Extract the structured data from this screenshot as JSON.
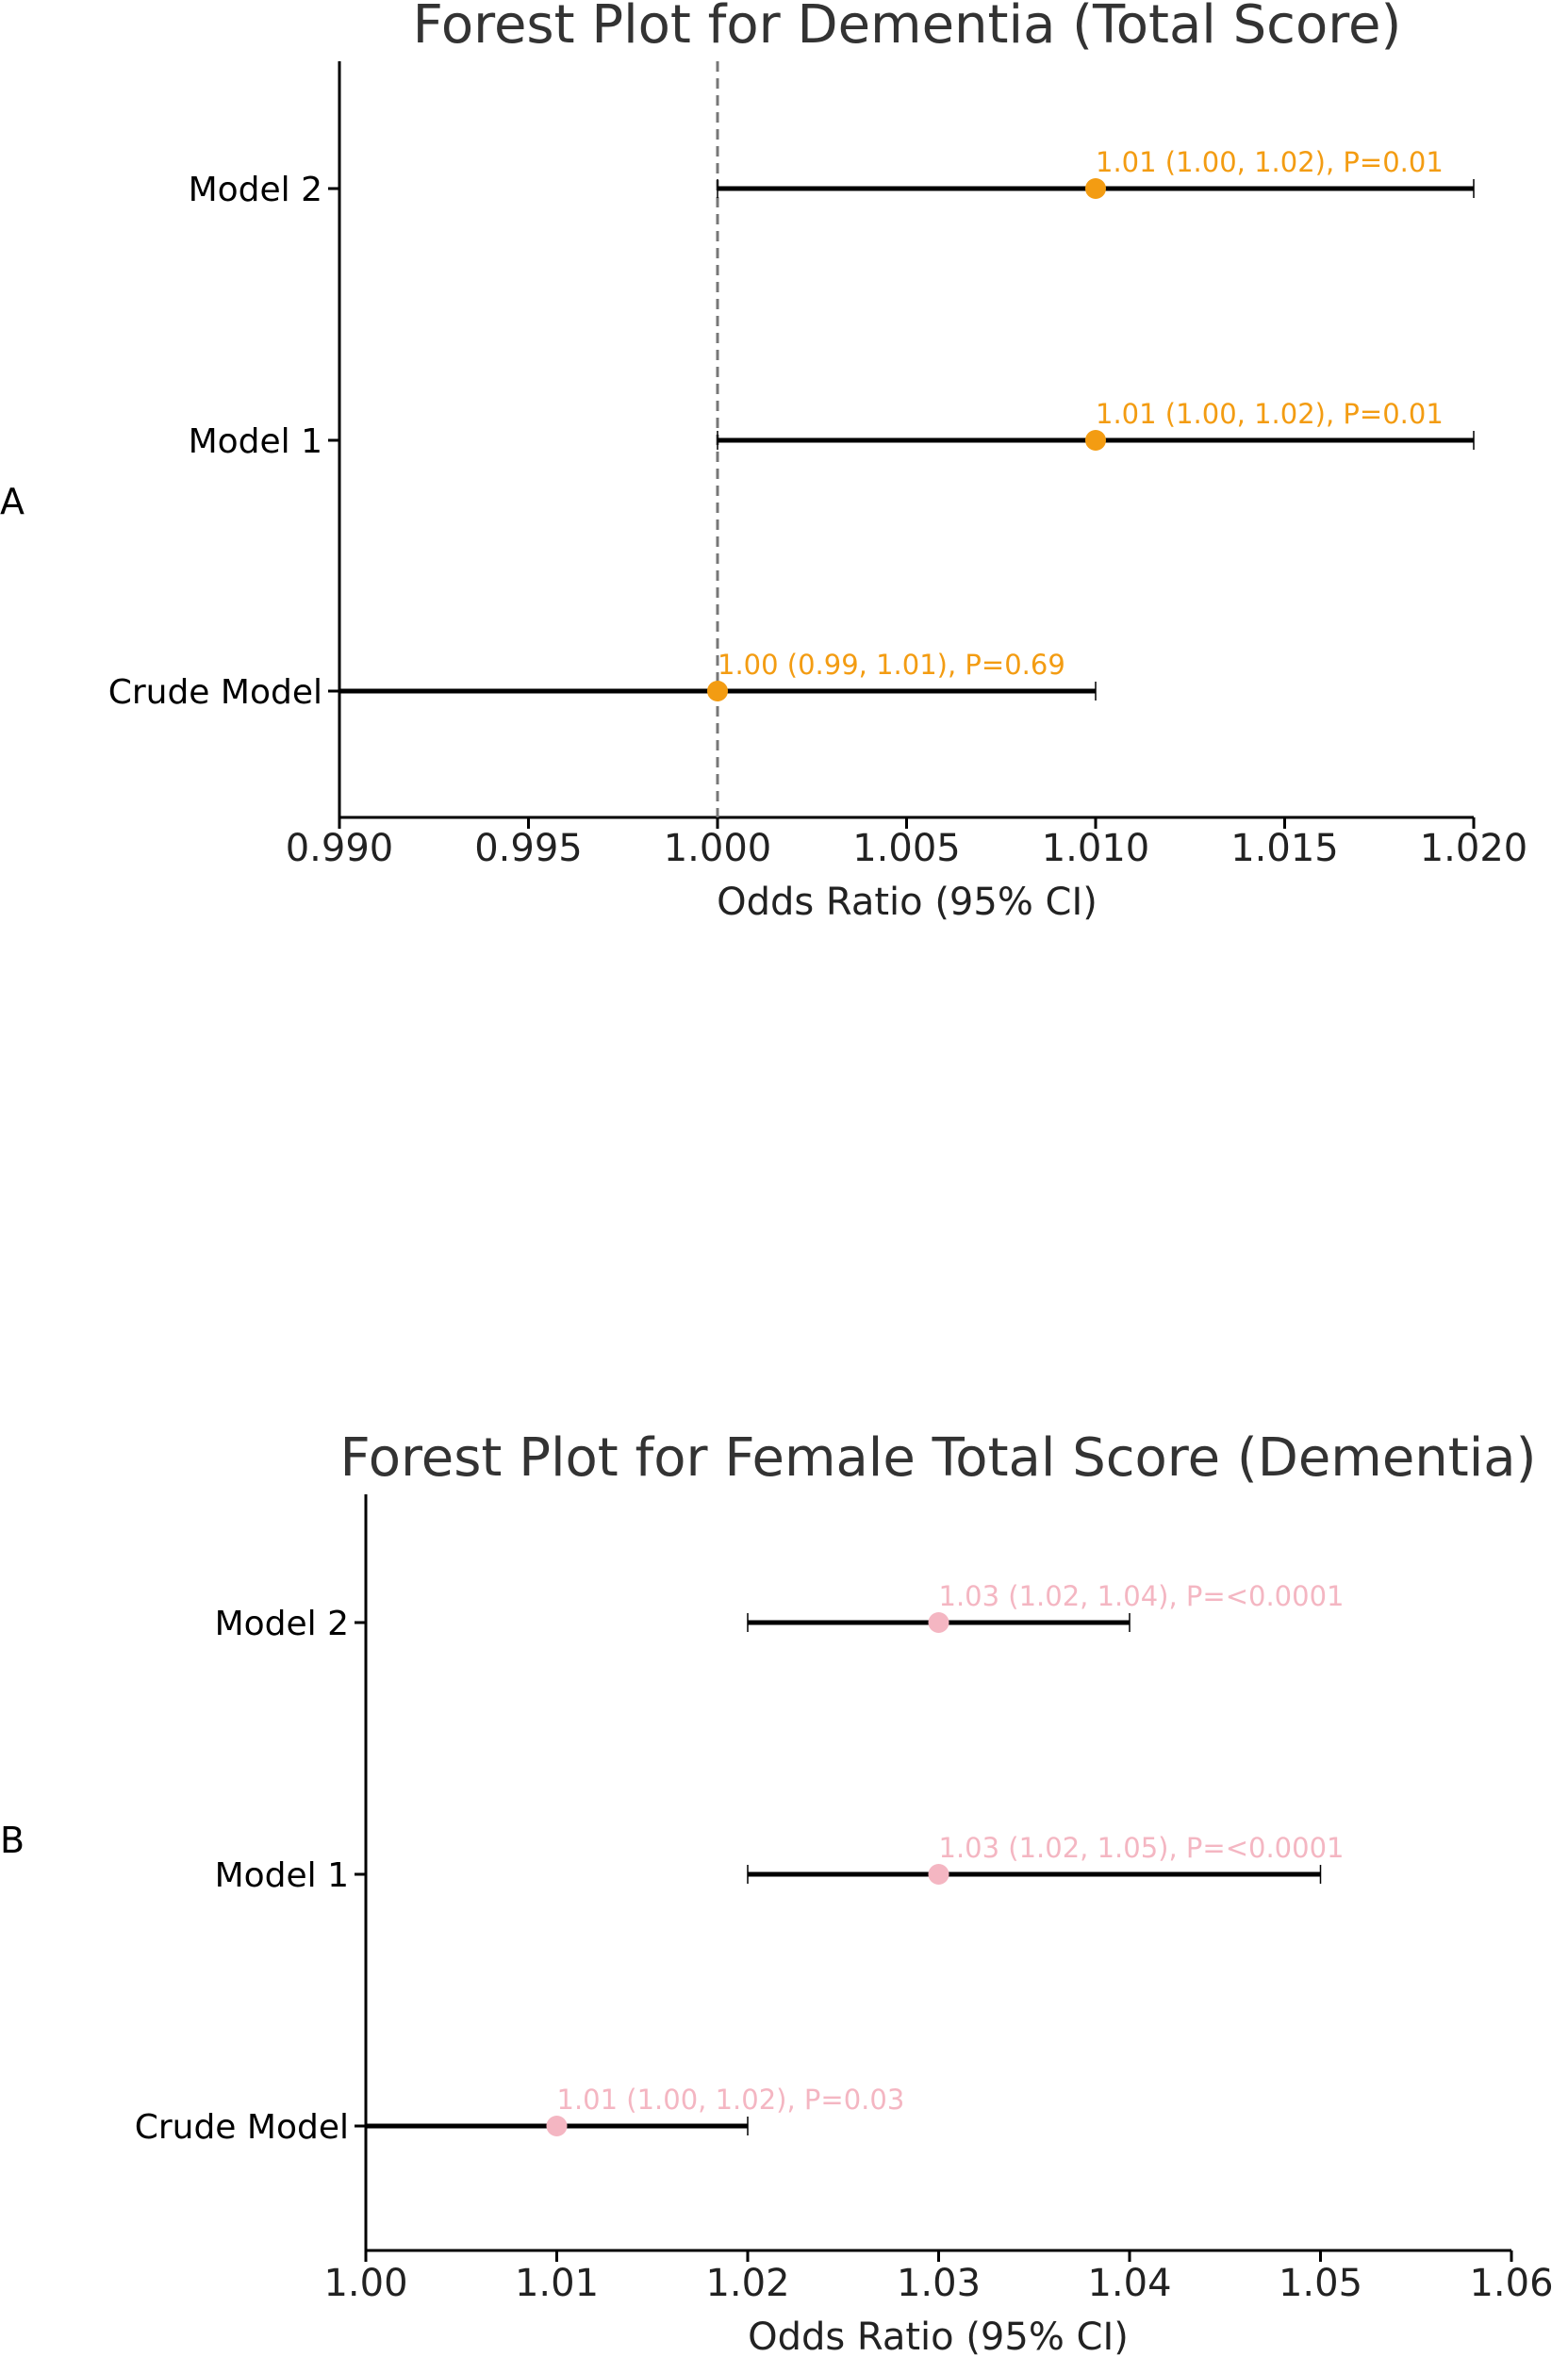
{
  "chart_data": [
    {
      "panel_label": "A",
      "type": "forest",
      "title": "Forest Plot for Dementia (Total Score)",
      "xlabel": "Odds Ratio (95% CI)",
      "xlim": [
        0.99,
        1.02
      ],
      "xticks": [
        "0.990",
        "0.995",
        "1.000",
        "1.005",
        "1.010",
        "1.015",
        "1.020"
      ],
      "xtick_values": [
        0.99,
        0.995,
        1.0,
        1.005,
        1.01,
        1.015,
        1.02
      ],
      "reference_line": 1.0,
      "point_color": "#f39c12",
      "rows": [
        {
          "label": "Model 2",
          "or": 1.01,
          "lower": 1.0,
          "upper": 1.02,
          "annotation": "1.01 (1.00, 1.02), P=0.01"
        },
        {
          "label": "Model 1",
          "or": 1.01,
          "lower": 1.0,
          "upper": 1.02,
          "annotation": "1.01 (1.00, 1.02), P=0.01"
        },
        {
          "label": "Crude Model",
          "or": 1.0,
          "lower": 0.99,
          "upper": 1.01,
          "annotation": "1.00 (0.99, 1.01), P=0.69"
        }
      ]
    },
    {
      "panel_label": "B",
      "type": "forest",
      "title": "Forest Plot for Female Total Score (Dementia)",
      "xlabel": "Odds Ratio (95% CI)",
      "xlim": [
        1.0,
        1.06
      ],
      "xticks": [
        "1.00",
        "1.01",
        "1.02",
        "1.03",
        "1.04",
        "1.05",
        "1.06"
      ],
      "xtick_values": [
        1.0,
        1.01,
        1.02,
        1.03,
        1.04,
        1.05,
        1.06
      ],
      "reference_line": null,
      "point_color": "#f4b6c2",
      "rows": [
        {
          "label": "Model 2",
          "or": 1.03,
          "lower": 1.02,
          "upper": 1.04,
          "annotation": "1.03 (1.02, 1.04), P=<0.0001"
        },
        {
          "label": "Model 1",
          "or": 1.03,
          "lower": 1.02,
          "upper": 1.05,
          "annotation": "1.03 (1.02, 1.05), P=<0.0001"
        },
        {
          "label": "Crude Model",
          "or": 1.01,
          "lower": 1.0,
          "upper": 1.02,
          "annotation": "1.01 (1.00, 1.02), P=0.03"
        }
      ]
    }
  ]
}
